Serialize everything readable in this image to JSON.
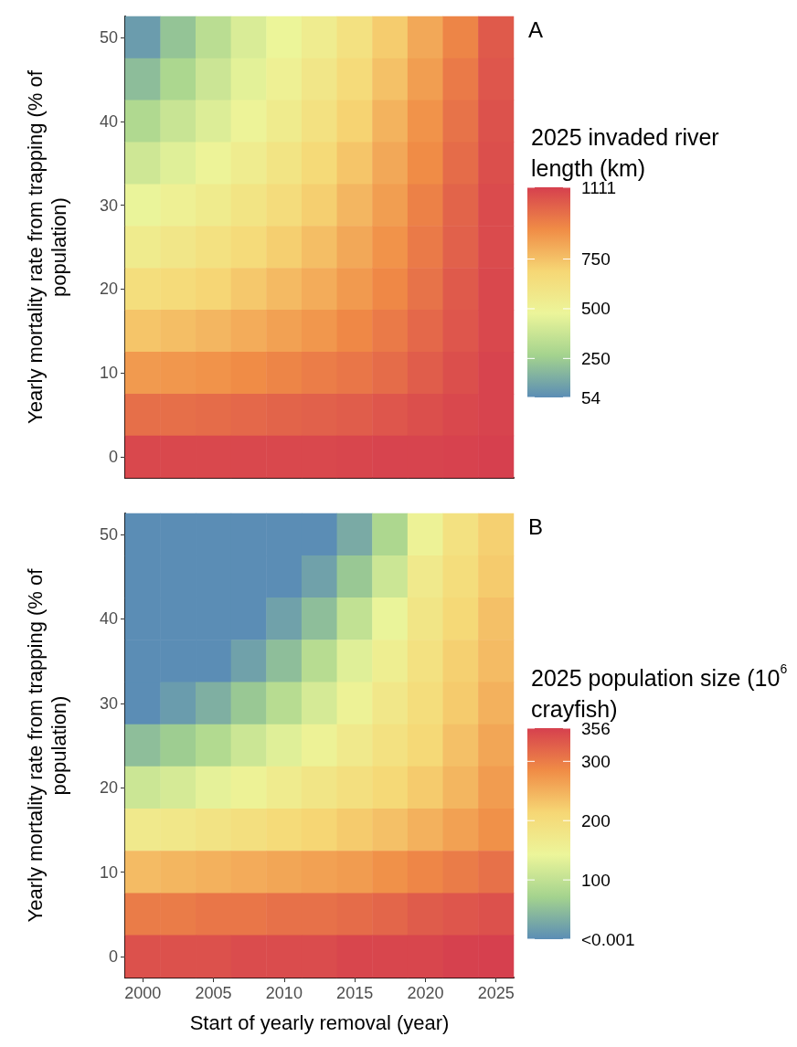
{
  "chart_data": [
    {
      "type": "heatmap",
      "ylabel": "Yearly mortality rate from trapping (% of population)",
      "clabel": "2025 invaded river length (km)",
      "annotations": [
        "A"
      ],
      "tick_labels": "y",
      "categories": [
        "2000",
        null,
        "2005",
        null,
        "2010",
        null,
        "2015",
        null,
        "2020",
        null,
        "2025"
      ],
      "y_categories": [
        "50",
        null,
        "40",
        null,
        "30",
        null,
        "20",
        null,
        "10",
        null,
        "0"
      ],
      "cells": [
        [
          100,
          220,
          330,
          420,
          480,
          540,
          620,
          720,
          820,
          920,
          1040
        ],
        [
          200,
          290,
          380,
          450,
          510,
          580,
          660,
          750,
          850,
          950,
          1050
        ],
        [
          300,
          370,
          430,
          490,
          550,
          620,
          700,
          790,
          880,
          970,
          1060
        ],
        [
          390,
          440,
          490,
          540,
          600,
          670,
          740,
          820,
          900,
          990,
          1070
        ],
        [
          470,
          510,
          550,
          600,
          650,
          710,
          780,
          850,
          930,
          1010,
          1080
        ],
        [
          550,
          580,
          620,
          660,
          710,
          760,
          820,
          880,
          950,
          1020,
          1080
        ],
        [
          640,
          660,
          690,
          730,
          770,
          810,
          860,
          910,
          970,
          1040,
          1090
        ],
        [
          740,
          760,
          780,
          810,
          840,
          870,
          910,
          950,
          1000,
          1050,
          1090
        ],
        [
          860,
          870,
          880,
          900,
          920,
          940,
          960,
          990,
          1030,
          1070,
          1100
        ],
        [
          980,
          980,
          990,
          1000,
          1010,
          1020,
          1030,
          1050,
          1070,
          1090,
          1100
        ],
        [
          1090,
          1090,
          1090,
          1090,
          1090,
          1090,
          1095,
          1100,
          1100,
          1105,
          1111
        ]
      ],
      "clim": [
        54,
        1111
      ],
      "cticks": [
        54,
        250,
        500,
        750,
        1111
      ]
    },
    {
      "type": "heatmap",
      "xlabel": "Start of yearly removal (year)",
      "ylabel": "Yearly mortality rate from trapping (% of population)",
      "clabel": "2025 population size (10$^{6}$ crayfish)",
      "annotations": [
        "B"
      ],
      "categories": [
        "2000",
        null,
        "2005",
        null,
        "2010",
        null,
        "2015",
        null,
        "2020",
        null,
        "2025"
      ],
      "y_categories": [
        "50",
        null,
        "40",
        null,
        "30",
        null,
        "20",
        null,
        "10",
        null,
        "0"
      ],
      "cells": [
        [
          0,
          0,
          0,
          0,
          0,
          0,
          30,
          80,
          150,
          190,
          220
        ],
        [
          0,
          0,
          0,
          0,
          0,
          20,
          60,
          110,
          170,
          200,
          225
        ],
        [
          0,
          0,
          0,
          0,
          20,
          50,
          100,
          140,
          180,
          210,
          235
        ],
        [
          0,
          0,
          0,
          20,
          50,
          90,
          130,
          160,
          190,
          220,
          240
        ],
        [
          0,
          15,
          35,
          60,
          90,
          120,
          150,
          175,
          200,
          225,
          250
        ],
        [
          50,
          65,
          85,
          110,
          130,
          150,
          170,
          190,
          210,
          235,
          260
        ],
        [
          110,
          120,
          135,
          150,
          165,
          180,
          195,
          210,
          225,
          245,
          270
        ],
        [
          170,
          175,
          185,
          195,
          205,
          215,
          225,
          235,
          250,
          265,
          280
        ],
        [
          240,
          245,
          250,
          255,
          260,
          265,
          270,
          280,
          290,
          300,
          310
        ],
        [
          300,
          300,
          305,
          305,
          310,
          310,
          315,
          320,
          330,
          335,
          340
        ],
        [
          340,
          340,
          340,
          345,
          345,
          345,
          350,
          350,
          350,
          355,
          356
        ]
      ],
      "clim": [
        0,
        356
      ],
      "cticks": [
        {
          "value": 0,
          "label": "<0.001"
        },
        100,
        200,
        300,
        356
      ]
    }
  ]
}
